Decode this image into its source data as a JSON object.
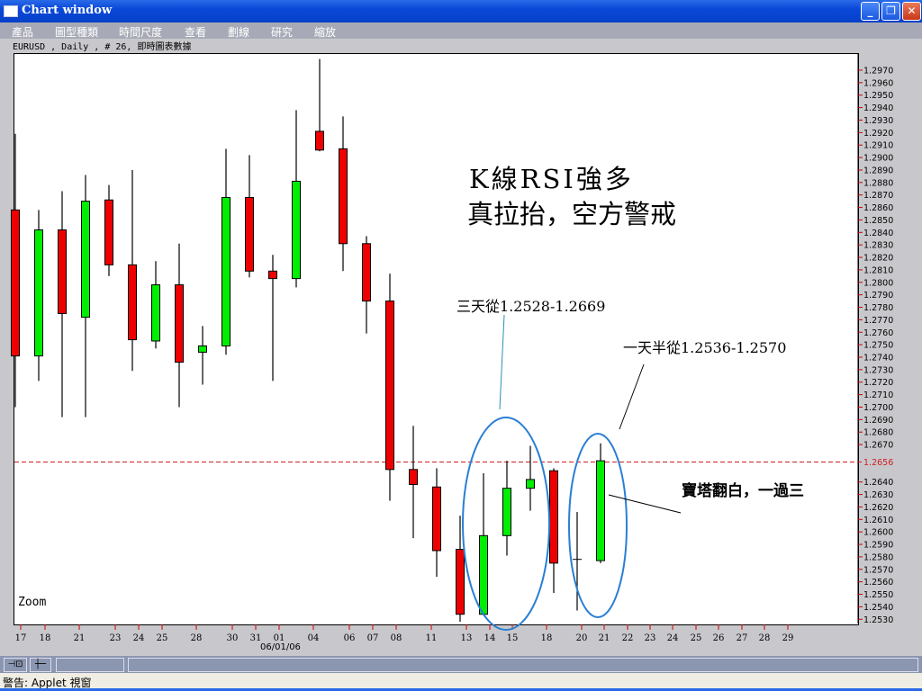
{
  "window": {
    "title": "Chart window",
    "buttons": [
      "minimize",
      "restore",
      "close"
    ]
  },
  "menu": [
    "產品",
    "圖型種類",
    "時間尺度",
    "查看",
    "劃線",
    "研究",
    "縮放"
  ],
  "info_line": "EURUSD , Daily , # 26, 即時圖表數據",
  "zoom_label": "Zoom",
  "status_text": "警告: Applet 視窗",
  "toolbar": {
    "pin_icon": "pin-icon",
    "crosshair_icon": "crosshair-icon"
  },
  "colors": {
    "up": "#00ee00",
    "down": "#ee0000",
    "ref_line": "#cc2020",
    "ellipse": "#2a7fd4",
    "axis_tick": "#cc0000"
  },
  "chart_data": {
    "type": "candlestick",
    "symbol": "EURUSD",
    "timeframe": "Daily",
    "ylim": [
      1.2525,
      1.2985
    ],
    "yticks": [
      "1.2970",
      "1.2960",
      "1.2950",
      "1.2940",
      "1.2930",
      "1.2920",
      "1.2910",
      "1.2900",
      "1.2890",
      "1.2880",
      "1.2870",
      "1.2860",
      "1.2850",
      "1.2840",
      "1.2830",
      "1.2820",
      "1.2810",
      "1.2800",
      "1.2790",
      "1.2780",
      "1.2770",
      "1.2760",
      "1.2750",
      "1.2740",
      "1.2730",
      "1.2720",
      "1.2710",
      "1.2700",
      "1.2690",
      "1.2680",
      "1.2670",
      "1.2640",
      "1.2630",
      "1.2620",
      "1.2610",
      "1.2600",
      "1.2590",
      "1.2580",
      "1.2570",
      "1.2560",
      "1.2550",
      "1.2540",
      "1.2530"
    ],
    "reference_line": {
      "value": 1.2656,
      "label": "1.2656",
      "style": "dashed"
    },
    "xtick_labels": [
      "17",
      "18",
      "21",
      "23",
      "24",
      "25",
      "28",
      "30",
      "31",
      "01",
      "04",
      "06",
      "07",
      "08",
      "11",
      "13",
      "14",
      "15",
      "18",
      "20",
      "21",
      "22",
      "23",
      "24",
      "25",
      "26",
      "27",
      "28",
      "29"
    ],
    "date_label": "06/01/06",
    "candles": [
      {
        "o": 1.2858,
        "h": 1.2919,
        "l": 1.27,
        "c": 1.2741
      },
      {
        "o": 1.2741,
        "h": 1.2858,
        "l": 1.2721,
        "c": 1.2842
      },
      {
        "o": 1.2842,
        "h": 1.2873,
        "l": 1.2692,
        "c": 1.2775
      },
      {
        "o": 1.2772,
        "h": 1.2886,
        "l": 1.2692,
        "c": 1.2865
      },
      {
        "o": 1.2866,
        "h": 1.2878,
        "l": 1.2805,
        "c": 1.2814
      },
      {
        "o": 1.2814,
        "h": 1.289,
        "l": 1.2729,
        "c": 1.2754
      },
      {
        "o": 1.2753,
        "h": 1.2817,
        "l": 1.2747,
        "c": 1.2798
      },
      {
        "o": 1.2798,
        "h": 1.2831,
        "l": 1.27,
        "c": 1.2736
      },
      {
        "o": 1.2744,
        "h": 1.2765,
        "l": 1.2718,
        "c": 1.2749
      },
      {
        "o": 1.2749,
        "h": 1.2907,
        "l": 1.2742,
        "c": 1.2868
      },
      {
        "o": 1.2868,
        "h": 1.2902,
        "l": 1.2804,
        "c": 1.2809
      },
      {
        "o": 1.2809,
        "h": 1.2822,
        "l": 1.2721,
        "c": 1.2803
      },
      {
        "o": 1.2803,
        "h": 1.2938,
        "l": 1.2796,
        "c": 1.2881
      },
      {
        "o": 1.2921,
        "h": 1.2979,
        "l": 1.2905,
        "c": 1.2906
      },
      {
        "o": 1.2907,
        "h": 1.2933,
        "l": 1.2809,
        "c": 1.2831
      },
      {
        "o": 1.2831,
        "h": 1.2837,
        "l": 1.2759,
        "c": 1.2785
      },
      {
        "o": 1.2785,
        "h": 1.2807,
        "l": 1.2625,
        "c": 1.265
      },
      {
        "o": 1.265,
        "h": 1.2685,
        "l": 1.2595,
        "c": 1.2638
      },
      {
        "o": 1.2636,
        "h": 1.2651,
        "l": 1.2564,
        "c": 1.2585
      },
      {
        "o": 1.2586,
        "h": 1.2613,
        "l": 1.2528,
        "c": 1.2534
      },
      {
        "o": 1.2534,
        "h": 1.2647,
        "l": 1.2533,
        "c": 1.2597
      },
      {
        "o": 1.2597,
        "h": 1.2657,
        "l": 1.2581,
        "c": 1.2635
      },
      {
        "o": 1.2635,
        "h": 1.2669,
        "l": 1.2617,
        "c": 1.2642
      },
      {
        "o": 1.2649,
        "h": 1.2651,
        "l": 1.2551,
        "c": 1.2575
      },
      {
        "o": 1.2578,
        "h": 1.2616,
        "l": 1.2537,
        "c": 1.2578
      },
      {
        "o": 1.2577,
        "h": 1.2671,
        "l": 1.2575,
        "c": 1.2657
      }
    ],
    "annotations": {
      "headline_1": "K線RSI強多",
      "headline_2": "真拉抬，空方警戒",
      "three_days": "三天從1.2528-1.2669",
      "day_and_half": "一天半從1.2536-1.2570",
      "pattern": "寶塔翻白，一過三"
    }
  }
}
